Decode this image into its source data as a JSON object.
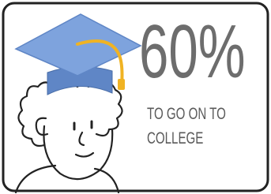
{
  "stat": {
    "headline": "60%",
    "caption_lines": [
      "TO GO ON TO",
      "COLLEGE"
    ]
  }
}
